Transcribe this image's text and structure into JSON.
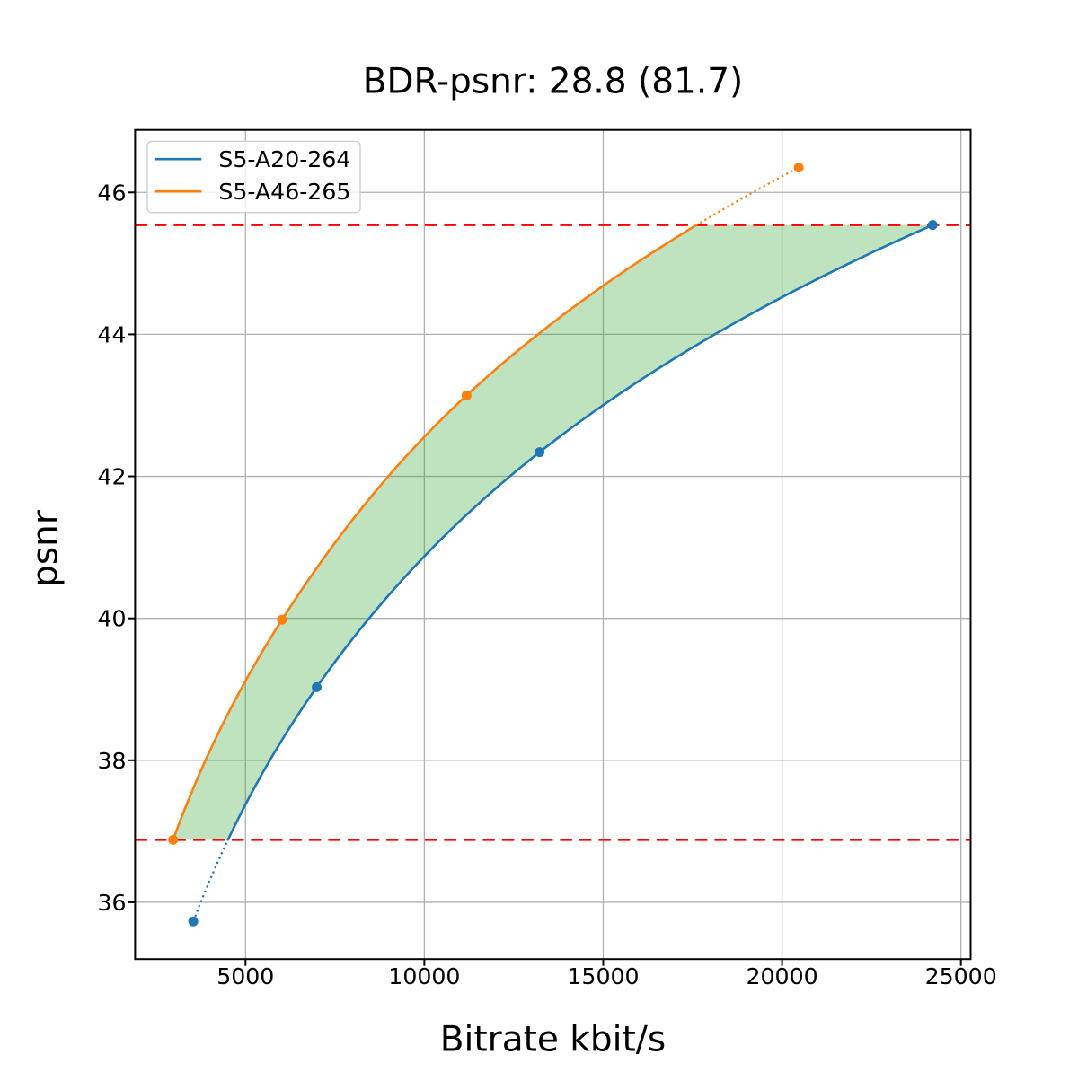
{
  "figure": {
    "title": "BDR-psnr: 28.8 (81.7)",
    "xlabel": "Bitrate kbit/s",
    "ylabel": "psnr"
  },
  "legend": {
    "entries": [
      {
        "label": "S5-A20-264",
        "color": "#1f77b4"
      },
      {
        "label": "S5-A46-265",
        "color": "#ff7f0e"
      }
    ]
  },
  "chart_data": {
    "type": "line",
    "title": "BDR-psnr: 28.8 (81.7)",
    "xlabel": "Bitrate kbit/s",
    "ylabel": "psnr",
    "series": [
      {
        "name": "S5-A20-264",
        "color": "#1f77b4",
        "x": [
          3540,
          6990,
          13220,
          24210
        ],
        "y": [
          35.73,
          39.03,
          42.34,
          45.54
        ]
      },
      {
        "name": "S5-A46-265",
        "color": "#ff7f0e",
        "x": [
          2976,
          6020,
          11180,
          20465
        ],
        "y": [
          36.88,
          39.98,
          43.14,
          46.35
        ]
      }
    ],
    "overlap_hlines": {
      "lower": 36.88,
      "upper": 45.54,
      "color": "#ff0000",
      "style": "dashed"
    },
    "fill_between": {
      "color": "#2ca02c",
      "alpha": 0.3
    },
    "xticks": [
      5000,
      10000,
      15000,
      20000,
      25000
    ],
    "yticks": [
      36,
      38,
      40,
      42,
      44,
      46
    ],
    "xlim": [
      1914,
      25272
    ],
    "ylim": [
      35.2,
      46.88
    ],
    "grid": true,
    "legend_position": "upper left",
    "colors": {
      "grid": "#b0b0b0",
      "spine": "#000000",
      "background": "#ffffff",
      "text": "#000000"
    }
  }
}
